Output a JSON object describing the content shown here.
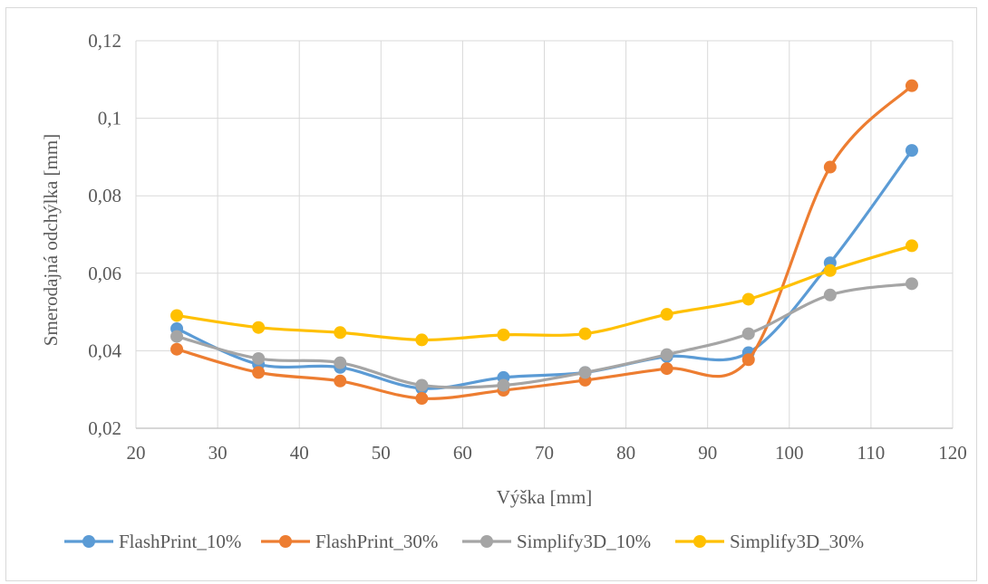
{
  "chart_data": {
    "type": "line",
    "title": "",
    "xlabel": "Výška [mm]",
    "ylabel": "Smerodajná odchýlka [mm]",
    "xlim": [
      20,
      120
    ],
    "ylim": [
      0.02,
      0.12
    ],
    "x_ticks": [
      20,
      30,
      40,
      50,
      60,
      70,
      80,
      90,
      100,
      110,
      120
    ],
    "x_tick_labels": [
      "20",
      "30",
      "40",
      "50",
      "60",
      "70",
      "80",
      "90",
      "100",
      "110",
      "120"
    ],
    "y_ticks": [
      0.02,
      0.04,
      0.06,
      0.08,
      0.1,
      0.12
    ],
    "y_tick_labels": [
      "0,02",
      "0,04",
      "0,06",
      "0,08",
      "0,1",
      "0,12"
    ],
    "grid": true,
    "legend_position": "bottom",
    "smooth": true,
    "x": [
      25,
      35,
      45,
      55,
      65,
      75,
      85,
      95,
      105,
      115
    ],
    "series": [
      {
        "name": "FlashPrint_10%",
        "color": "#5b9bd5",
        "values": [
          0.0457,
          0.0365,
          0.0357,
          0.0303,
          0.0331,
          0.0344,
          0.0385,
          0.0395,
          0.0627,
          0.0917
        ]
      },
      {
        "name": "FlashPrint_30%",
        "color": "#ed7d31",
        "values": [
          0.0404,
          0.0344,
          0.0322,
          0.0277,
          0.0298,
          0.0324,
          0.0354,
          0.0377,
          0.0874,
          0.1084
        ]
      },
      {
        "name": "Simplify3D_10%",
        "color": "#a5a5a5",
        "values": [
          0.0437,
          0.038,
          0.0369,
          0.0311,
          0.0311,
          0.0344,
          0.039,
          0.0444,
          0.0544,
          0.0573
        ]
      },
      {
        "name": "Simplify3D_30%",
        "color": "#ffc000",
        "values": [
          0.0491,
          0.046,
          0.0447,
          0.0428,
          0.0441,
          0.0444,
          0.0494,
          0.0533,
          0.0607,
          0.0671
        ]
      }
    ]
  }
}
